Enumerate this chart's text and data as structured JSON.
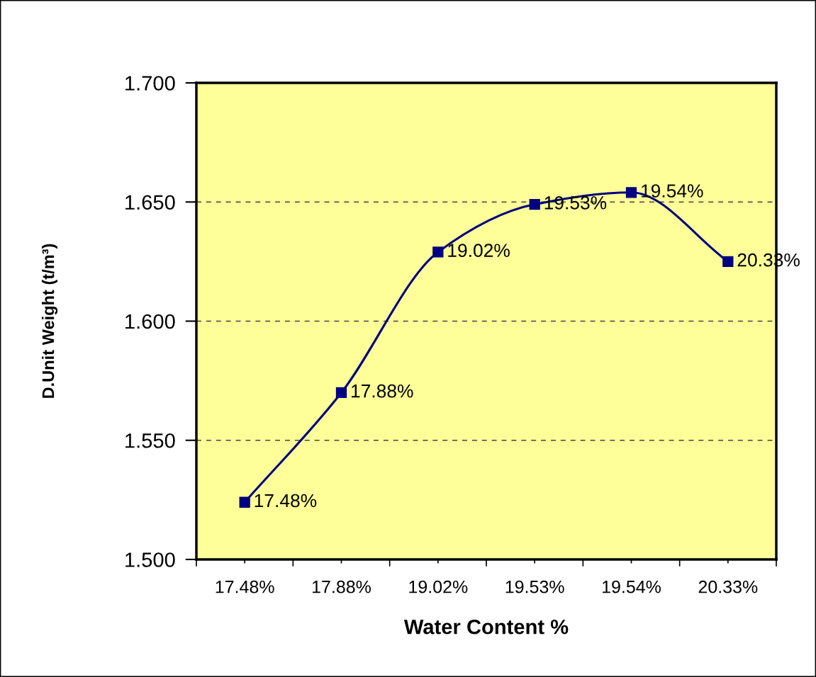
{
  "chart_data": {
    "type": "line",
    "xlabel": "Water Content %",
    "ylabel": "D.Unit Weight (t/m³)",
    "categories": [
      "17.48%",
      "17.88%",
      "19.02%",
      "19.53%",
      "19.54%",
      "20.33%"
    ],
    "series": [
      {
        "color": "#000080",
        "values": [
          1.524,
          1.57,
          1.629,
          1.649,
          1.654,
          1.625
        ]
      }
    ],
    "annotations": [
      {
        "text": "17.48%",
        "x": "17.48%",
        "y": 1.524
      },
      {
        "text": "17.88%",
        "x": "17.88%",
        "y": 1.57
      },
      {
        "text": "19.02%",
        "x": "19.02%",
        "y": 1.629
      },
      {
        "text": "19.53%",
        "x": "19.53%",
        "y": 1.649
      },
      {
        "text": "19.54%",
        "x": "19.54%",
        "y": 1.654
      },
      {
        "text": "20.33%",
        "x": "20.33%",
        "y": 1.625
      }
    ],
    "ylim": [
      1.5,
      1.7
    ],
    "yticks": [
      {
        "value": 1.5,
        "label": "1.500"
      },
      {
        "value": 1.55,
        "label": "1.550"
      },
      {
        "value": 1.6,
        "label": "1.600"
      },
      {
        "value": 1.65,
        "label": "1.650"
      },
      {
        "value": 1.7,
        "label": "1.700"
      }
    ],
    "grid": "y",
    "marker": "square",
    "line_style": "solid"
  }
}
